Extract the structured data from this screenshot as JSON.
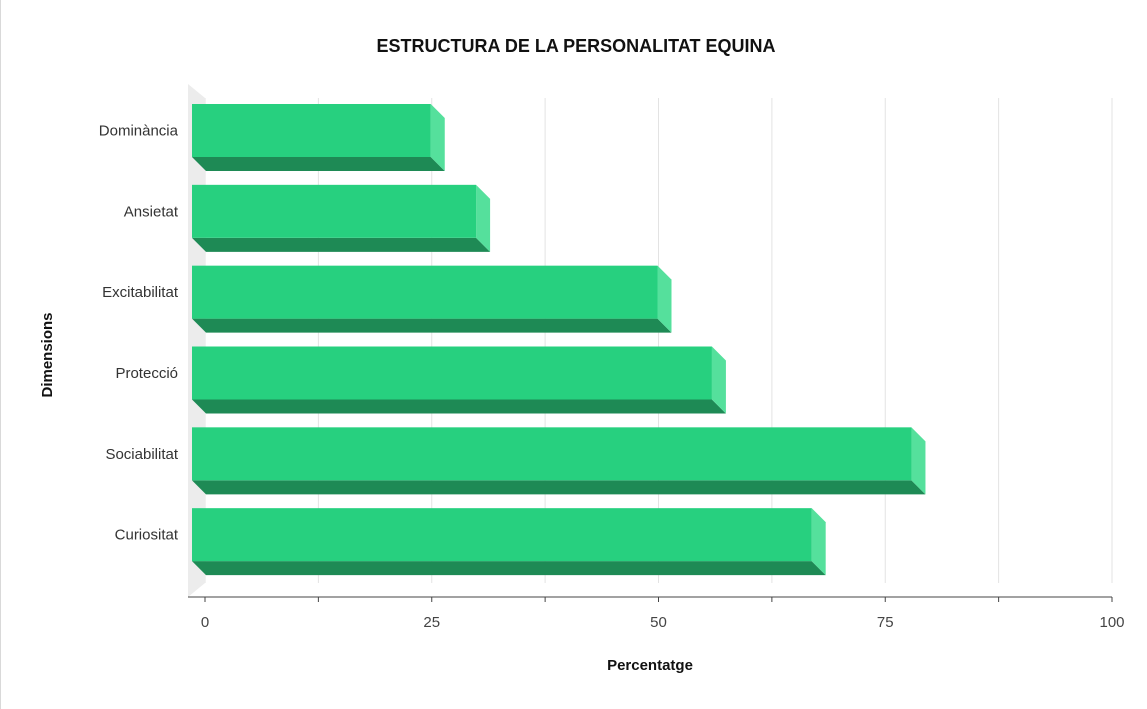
{
  "chart_data": {
    "type": "bar",
    "orientation": "horizontal",
    "title": "ESTRUCTURA DE LA PERSONALITAT EQUINA",
    "xlabel": "Percentatge",
    "ylabel": "Dimensions",
    "categories": [
      "Dominància",
      "Ansietat",
      "Excitabilitat",
      "Protecció",
      "Sociabilitat",
      "Curiositat"
    ],
    "values": [
      25,
      30,
      50,
      56,
      78,
      67
    ],
    "xlim": [
      0,
      100
    ],
    "xticks": [
      "0",
      "25",
      "50",
      "75",
      "100"
    ],
    "grid": true,
    "bar_color": "#27d07f",
    "bar_shade_color": "#1e8a55",
    "bar_side_color": "#55e09c"
  }
}
